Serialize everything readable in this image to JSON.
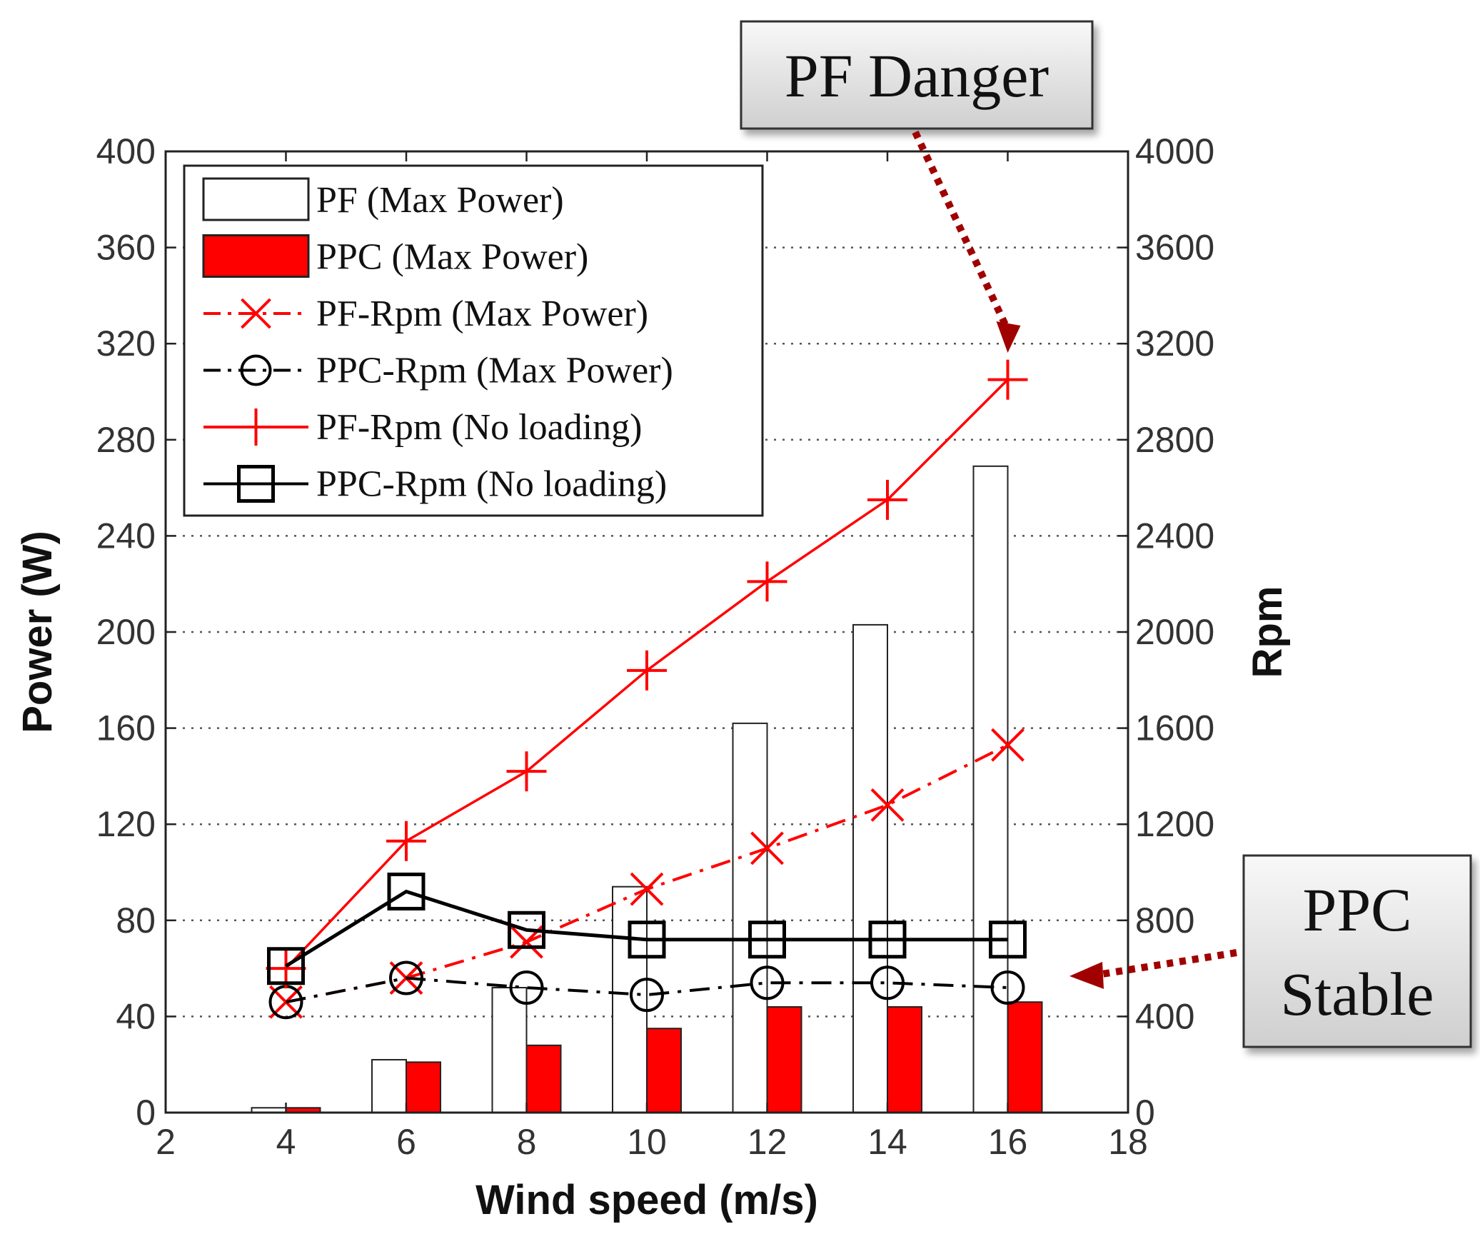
{
  "chart_data": {
    "type": "bar",
    "xlabel": "Wind speed (m/s)",
    "ylabel": "Power (W)",
    "y2label": "Rpm",
    "xlim": [
      2,
      18
    ],
    "ylim": [
      0,
      400
    ],
    "y2lim": [
      0,
      4000
    ],
    "xticks": [
      "2",
      "4",
      "6",
      "8",
      "10",
      "12",
      "14",
      "16",
      "18"
    ],
    "yticks": [
      "0",
      "40",
      "80",
      "120",
      "160",
      "200",
      "240",
      "280",
      "320",
      "360",
      "400"
    ],
    "y2ticks": [
      "0",
      "400",
      "800",
      "1200",
      "1600",
      "2000",
      "2400",
      "2800",
      "3200",
      "3600",
      "4000"
    ],
    "grid": "horizontal dotted",
    "legend_position": "top-left",
    "x": [
      4,
      6,
      8,
      10,
      12,
      14,
      16
    ],
    "bar_series": [
      {
        "name": "PF (Max Power)",
        "axis": "left",
        "color": "#ffffff",
        "values": [
          2,
          22,
          52,
          94,
          162,
          203,
          269
        ]
      },
      {
        "name": "PPC (Max Power)",
        "axis": "left",
        "color": "#ff0000",
        "values": [
          2,
          21,
          28,
          35,
          44,
          44,
          46
        ]
      }
    ],
    "line_series": [
      {
        "name": "PF-Rpm (Max Power)",
        "axis": "right",
        "color": "#ff0000",
        "marker": "x",
        "style": "dashdot",
        "values": [
          460,
          560,
          710,
          930,
          1100,
          1280,
          1530
        ]
      },
      {
        "name": "PPC-Rpm (Max Power)",
        "axis": "right",
        "color": "#000000",
        "marker": "circle",
        "style": "dashdot",
        "values": [
          460,
          560,
          520,
          490,
          540,
          540,
          520
        ]
      },
      {
        "name": "PF-Rpm (No loading)",
        "axis": "right",
        "color": "#ff0000",
        "marker": "plus",
        "style": "solid",
        "values": [
          600,
          1130,
          1420,
          1840,
          2210,
          2550,
          3050
        ]
      },
      {
        "name": "PPC-Rpm (No loading)",
        "axis": "right",
        "color": "#000000",
        "marker": "square",
        "style": "solid",
        "values": [
          610,
          920,
          760,
          720,
          720,
          720,
          720
        ]
      }
    ],
    "annotations": [
      {
        "lines": [
          "PF Danger"
        ],
        "points_to": {
          "x": 16,
          "y2": 3150
        },
        "arrow_color": "#a00000"
      },
      {
        "lines": [
          "PPC",
          "Stable"
        ],
        "points_to": {
          "x": 17,
          "y2": 580
        },
        "arrow_color": "#a00000"
      }
    ]
  }
}
